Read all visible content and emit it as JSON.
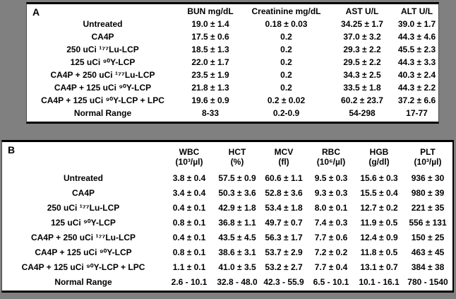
{
  "background_color": "#808080",
  "tableA": {
    "label": "A",
    "columns": [
      "BUN mg/dL",
      "Creatinine mg/dL",
      "AST U/L",
      "ALT U/L"
    ],
    "rows": [
      {
        "label": "Untreated",
        "values": [
          "19.0 ± 1.4",
          "0.18 ± 0.03",
          "34.25 ± 1.7",
          "39.0 ± 1.7"
        ]
      },
      {
        "label": "CA4P",
        "values": [
          "17.5 ± 0.6",
          "0.2",
          "37.0 ± 3.2",
          "44.3 ± 4.6"
        ]
      },
      {
        "label": "250 uCi ¹⁷⁷Lu-LCP",
        "values": [
          "18.5 ± 1.3",
          "0.2",
          "29.3 ± 2.2",
          "45.5 ± 2.3"
        ]
      },
      {
        "label": "125 uCi ⁹⁰Y-LCP",
        "values": [
          "22.0 ± 1.7",
          "0.2",
          "29.5 ± 2.2",
          "44.3 ± 3.3"
        ]
      },
      {
        "label": "CA4P + 250 uCi ¹⁷⁷Lu-LCP",
        "values": [
          "23.5 ± 1.9",
          "0.2",
          "34.3 ± 2.5",
          "40.3 ± 2.4"
        ]
      },
      {
        "label": "CA4P + 125 uCi ⁹⁰Y-LCP",
        "values": [
          "21.8 ± 1.3",
          "0.2",
          "33.5 ± 1.8",
          "44.3 ± 2.2"
        ]
      },
      {
        "label": "CA4P + 125 uCi ⁹⁰Y-LCP + LPC",
        "values": [
          "19.6 ± 0.9",
          "0.2 ± 0.02",
          "60.2 ± 23.7",
          "37.2 ± 6.6"
        ]
      },
      {
        "label": "Normal Range",
        "values": [
          "8-33",
          "0.2-0.9",
          "54-298",
          "17-77"
        ]
      }
    ]
  },
  "tableB": {
    "label": "B",
    "columns": [
      {
        "name": "WBC",
        "unit": "(10³/µl)"
      },
      {
        "name": "HCT",
        "unit": "(%)"
      },
      {
        "name": "MCV",
        "unit": "(fl)"
      },
      {
        "name": "RBC",
        "unit": "(10⁶/µl)"
      },
      {
        "name": "HGB",
        "unit": "(g/dl)"
      },
      {
        "name": "PLT",
        "unit": "(10³/µl)"
      }
    ],
    "rows": [
      {
        "label": "Untreated",
        "values": [
          "3.8 ± 0.4",
          "57.5 ± 0.9",
          "60.6 ± 1.1",
          "9.5 ± 0.3",
          "15.6 ± 0.3",
          "936 ± 30"
        ]
      },
      {
        "label": "CA4P",
        "values": [
          "3.4 ± 0.4",
          "50.3 ± 3.6",
          "52.8 ± 3.6",
          "9.3 ± 0.3",
          "15.5 ± 0.4",
          "980 ± 39"
        ]
      },
      {
        "label": "250 uCi ¹⁷⁷Lu-LCP",
        "values": [
          "0.4 ± 0.1",
          "42.9 ± 1.8",
          "53.4 ± 1.8",
          "8.0 ± 0.1",
          "12.7 ± 0.2",
          "221 ± 35"
        ]
      },
      {
        "label": "125 uCi ⁹⁰Y-LCP",
        "values": [
          "0.8 ± 0.1",
          "36.8 ± 1.1",
          "49.7 ± 0.7",
          "7.4 ± 0.3",
          "11.9 ± 0.5",
          "556 ± 131"
        ]
      },
      {
        "label": "CA4P + 250 uCi ¹⁷⁷Lu-LCP",
        "values": [
          "0.4 ± 0.1",
          "43.5 ± 4.5",
          "56.3 ± 1.7",
          "7.7 ± 0.6",
          "12.4 ± 0.9",
          "150 ± 25"
        ]
      },
      {
        "label": "CA4P + 125 uCi ⁹⁰Y-LCP",
        "values": [
          "0.8 ± 0.1",
          "38.6 ± 3.1",
          "53.7 ± 2.9",
          "7.2 ± 0.2",
          "11.8 ± 0.5",
          "463 ± 45"
        ]
      },
      {
        "label": "CA4P + 125 uCi ⁹⁰Y-LCP + LPC",
        "values": [
          "1.1 ± 0.1",
          "41.0 ± 3.5",
          "53.2 ± 2.7",
          "7.7 ± 0.4",
          "13.1 ± 0.7",
          "384 ± 38"
        ]
      },
      {
        "label": "Normal Range",
        "values": [
          "2.6 - 10.1",
          "32.8 - 48.0",
          "42.3 - 55.9",
          "6.5 - 10.1",
          "10.1 - 16.1",
          "780 - 1540"
        ]
      }
    ]
  }
}
